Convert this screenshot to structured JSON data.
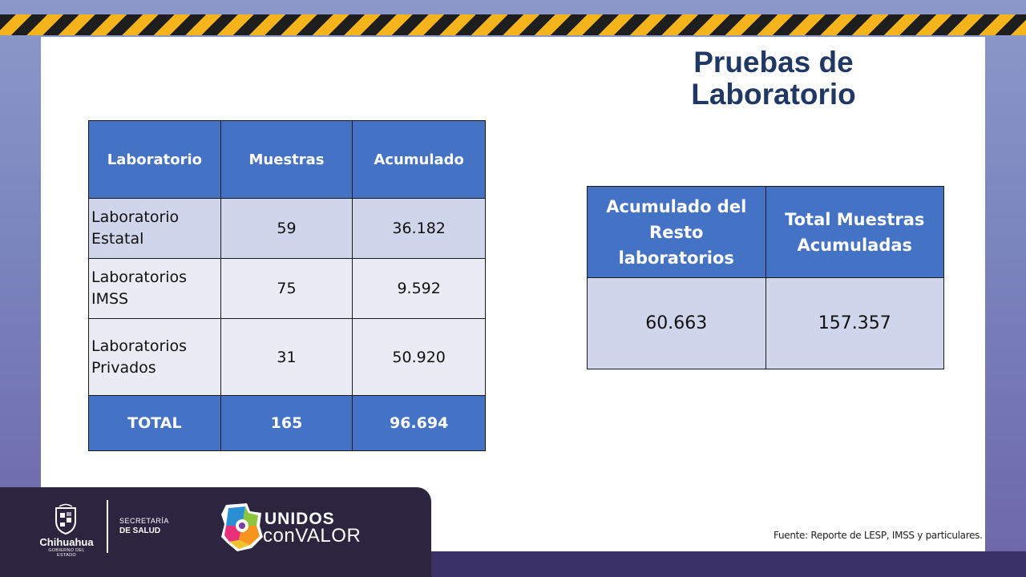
{
  "title": "Pruebas de Laboratorio",
  "lab_table": {
    "headers": [
      "Laboratorio",
      "Muestras",
      "Acumulado"
    ],
    "rows": [
      {
        "name": "Laboratorio Estatal",
        "muestras": "59",
        "acumulado": "36.182"
      },
      {
        "name": "Laboratorios IMSS",
        "muestras": "75",
        "acumulado": "9.592"
      },
      {
        "name": "Laboratorios Privados",
        "muestras": "31",
        "acumulado": "50.920"
      }
    ],
    "total": {
      "label": "TOTAL",
      "muestras": "165",
      "acumulado": "96.694"
    }
  },
  "summary_table": {
    "headers": [
      "Acumulado del Resto laboratorios",
      "Total Muestras Acumuladas"
    ],
    "values": [
      "60.663",
      "157.357"
    ]
  },
  "footer": {
    "state_name": "Chihuahua",
    "state_subtitle": "GOBIERNO DEL ESTADO",
    "department_line1": "SECRETARÍA",
    "department_line2": "DE SALUD",
    "campaign_line1": "UNIDOS",
    "campaign_line2": "conVALOR",
    "source": "Fuente: Reporte de LESP, IMSS y particulares."
  },
  "colors": {
    "header_blue": "#4472c4",
    "title_navy": "#1f3864",
    "row_light": "#e9ebf5",
    "row_mid": "#cfd5ea",
    "stripe_yellow": "#f6b41c"
  }
}
